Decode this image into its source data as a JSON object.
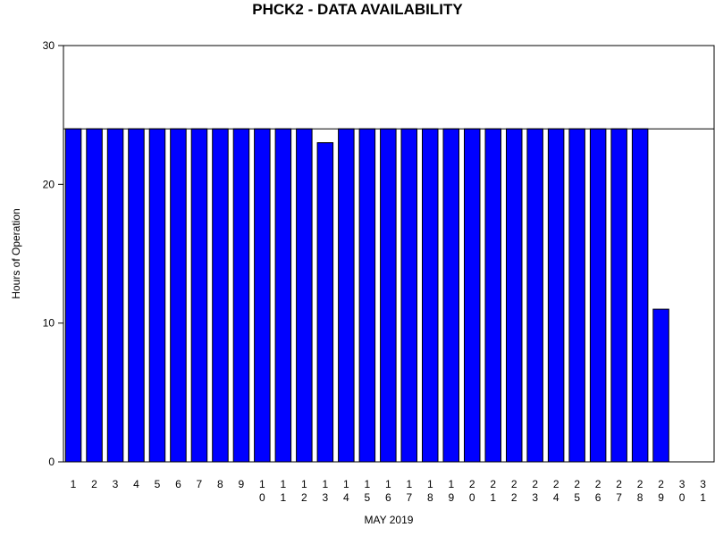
{
  "chart_data": {
    "type": "bar",
    "title": "PHCK2 - DATA AVAILABILITY",
    "xlabel": "MAY 2019",
    "ylabel": "Hours of Operation",
    "ylim": [
      0,
      30
    ],
    "yticks": [
      0,
      10,
      20,
      30
    ],
    "reference_line": 24,
    "bar_color": "#0000ff",
    "bar_edge_color": "#000000",
    "categories": [
      "1",
      "2",
      "3",
      "4",
      "5",
      "6",
      "7",
      "8",
      "9",
      "10",
      "11",
      "12",
      "13",
      "14",
      "15",
      "16",
      "17",
      "18",
      "19",
      "20",
      "21",
      "22",
      "23",
      "24",
      "25",
      "26",
      "27",
      "28",
      "29",
      "30",
      "31"
    ],
    "values": [
      24,
      24,
      24,
      24,
      24,
      24,
      24,
      24,
      24,
      24,
      24,
      24,
      23,
      24,
      24,
      24,
      24,
      24,
      24,
      24,
      24,
      24,
      24,
      24,
      24,
      24,
      24,
      24,
      11,
      0,
      0
    ]
  }
}
